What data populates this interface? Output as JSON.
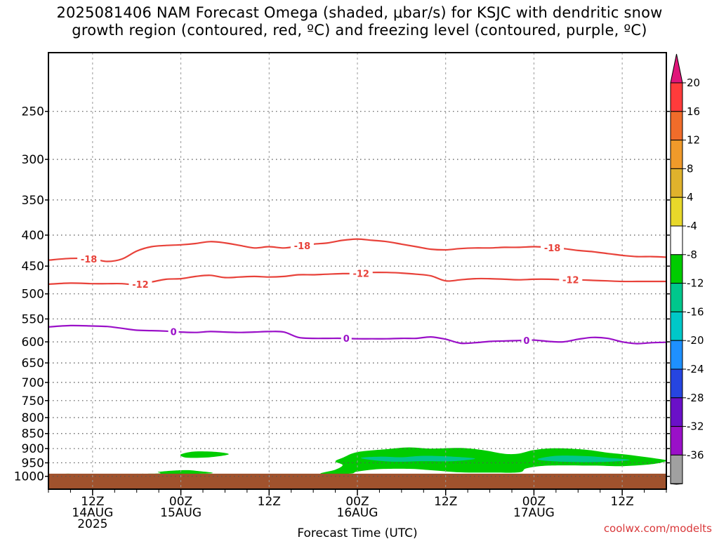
{
  "title_line1": "2025081406 NAM Forecast Omega (shaded, μbar/s) for KSJC with dendritic snow",
  "title_line2": "growth region (contoured, red, ºC) and freezing level (contoured, purple, ºC)",
  "credit": "coolwx.com/modelts",
  "chart_data": {
    "type": "contour",
    "title": "2025081406 NAM Forecast Omega (shaded, μbar/s) for KSJC with dendritic snow growth region (contoured, red, ºC) and freezing level (contoured, purple, ºC)",
    "xlabel": "Forecast Time (UTC)",
    "ylabel": "",
    "x_range_hours": [
      6,
      90
    ],
    "x_ticks": [
      {
        "hour": 12,
        "lines": [
          "12Z",
          "14AUG",
          "2025"
        ]
      },
      {
        "hour": 24,
        "lines": [
          "00Z",
          "15AUG"
        ]
      },
      {
        "hour": 36,
        "lines": [
          "12Z"
        ]
      },
      {
        "hour": 48,
        "lines": [
          "00Z",
          "16AUG"
        ]
      },
      {
        "hour": 60,
        "lines": [
          "12Z"
        ]
      },
      {
        "hour": 72,
        "lines": [
          "00Z",
          "17AUG"
        ]
      },
      {
        "hour": 84,
        "lines": [
          "12Z"
        ]
      }
    ],
    "y_scale": "log pressure (inverted)",
    "y_range_mb": [
      1050,
      200
    ],
    "y_ticks": [
      250,
      300,
      350,
      400,
      450,
      500,
      550,
      600,
      650,
      700,
      750,
      800,
      850,
      900,
      950,
      1000
    ],
    "grid": "dotted",
    "surface_level_mb": 990,
    "contours": [
      {
        "name": "-18",
        "color": "#e8423a",
        "label": "-18",
        "label_hours": [
          11.5,
          40.5,
          74.5
        ],
        "hours": [
          6,
          9,
          12,
          14,
          16,
          18,
          20,
          22,
          24,
          26,
          28,
          30,
          32,
          34,
          36,
          38,
          40,
          42,
          44,
          46,
          48,
          50,
          52,
          54,
          56,
          58,
          60,
          62,
          64,
          66,
          68,
          70,
          72,
          74,
          76,
          78,
          80,
          82,
          84,
          86,
          88,
          90
        ],
        "pressure_mb": [
          440,
          437,
          438,
          442,
          438,
          425,
          418,
          416,
          415,
          413,
          410,
          412,
          416,
          420,
          418,
          420,
          417,
          414,
          412,
          408,
          406,
          408,
          410,
          414,
          418,
          422,
          423,
          421,
          420,
          420,
          419,
          419,
          418,
          419,
          421,
          424,
          426,
          429,
          432,
          434,
          434,
          435
        ]
      },
      {
        "name": "-12",
        "color": "#e8423a",
        "label": "-12",
        "label_hours": [
          18.5,
          48.5,
          77
        ],
        "hours": [
          6,
          9,
          12,
          14,
          16,
          18,
          20,
          22,
          24,
          26,
          28,
          30,
          32,
          34,
          36,
          38,
          40,
          42,
          44,
          46,
          48,
          50,
          52,
          54,
          56,
          58,
          60,
          62,
          64,
          66,
          68,
          70,
          72,
          74,
          76,
          78,
          80,
          82,
          84,
          86,
          88,
          90
        ],
        "pressure_mb": [
          482,
          480,
          481,
          481,
          481,
          483,
          478,
          473,
          472,
          468,
          466,
          470,
          469,
          468,
          469,
          468,
          465,
          465,
          464,
          463,
          463,
          461,
          461,
          462,
          464,
          467,
          476,
          474,
          472,
          472,
          473,
          474,
          473,
          473,
          474,
          474,
          475,
          476,
          477,
          477,
          477,
          477
        ]
      },
      {
        "name": "0",
        "color": "#9a10c8",
        "label": "0",
        "label_hours": [
          23,
          46.5,
          71
        ],
        "hours": [
          6,
          9,
          12,
          14,
          16,
          18,
          20,
          22,
          24,
          26,
          28,
          30,
          32,
          34,
          36,
          38,
          40,
          42,
          44,
          46,
          48,
          50,
          52,
          54,
          56,
          58,
          60,
          62,
          64,
          66,
          68,
          70,
          72,
          74,
          76,
          78,
          80,
          82,
          84,
          86,
          88,
          90
        ],
        "pressure_mb": [
          567,
          564,
          565,
          566,
          570,
          574,
          575,
          576,
          578,
          579,
          577,
          578,
          579,
          578,
          577,
          578,
          590,
          592,
          592,
          592,
          593,
          593,
          593,
          592,
          592,
          589,
          594,
          603,
          602,
          599,
          598,
          597,
          596,
          599,
          600,
          594,
          590,
          592,
          600,
          604,
          602,
          601
        ]
      }
    ],
    "omega_regions": [
      {
        "level": "-4 to -8",
        "color": "#00cc00",
        "polygon_hours_mb": [
          [
            6,
            991
          ],
          [
            6,
            990
          ],
          [
            20,
            990
          ],
          [
            21,
            983
          ],
          [
            24,
            977
          ],
          [
            26,
            979
          ],
          [
            27,
            990
          ],
          [
            6,
            990
          ]
        ]
      },
      {
        "level": "-4 to -8",
        "color": "#00cc00",
        "polygon_hours_mb": [
          [
            24.2,
            918
          ],
          [
            26,
            910
          ],
          [
            29,
            912
          ],
          [
            30.5,
            920
          ],
          [
            28,
            930
          ],
          [
            25,
            932
          ],
          [
            24,
            925
          ]
        ]
      },
      {
        "level": "-4 to -8",
        "color": "#00cc00",
        "polygon_hours_mb": [
          [
            43,
            990
          ],
          [
            45,
            975
          ],
          [
            46,
            958
          ],
          [
            45,
            945
          ],
          [
            46,
            932
          ],
          [
            48,
            912
          ],
          [
            52,
            902
          ],
          [
            55,
            896
          ],
          [
            58,
            900
          ],
          [
            62,
            898
          ],
          [
            65,
            905
          ],
          [
            68,
            918
          ],
          [
            70,
            917
          ],
          [
            72,
            905
          ],
          [
            75,
            899
          ],
          [
            79,
            904
          ],
          [
            82,
            914
          ],
          [
            85,
            922
          ],
          [
            89,
            936
          ],
          [
            90,
            943
          ],
          [
            88,
            955
          ],
          [
            84,
            962
          ],
          [
            80,
            960
          ],
          [
            74,
            960
          ],
          [
            71,
            970
          ],
          [
            70,
            985
          ],
          [
            66,
            986
          ],
          [
            62,
            985
          ],
          [
            58,
            977
          ],
          [
            55,
            972
          ],
          [
            51,
            973
          ],
          [
            48,
            982
          ],
          [
            47,
            990
          ]
        ]
      },
      {
        "level": "-8 to -12",
        "color": "#00c78c",
        "polygon_hours_mb": [
          [
            48.5,
            932
          ],
          [
            51,
            928
          ],
          [
            54,
            930
          ],
          [
            57,
            925
          ],
          [
            61,
            928
          ],
          [
            64,
            935
          ],
          [
            61,
            944
          ],
          [
            57,
            944
          ],
          [
            53,
            946
          ],
          [
            50,
            940
          ]
        ]
      },
      {
        "level": "-8 to -12",
        "color": "#00c78c",
        "polygon_hours_mb": [
          [
            72.5,
            938
          ],
          [
            75,
            925
          ],
          [
            79,
            926
          ],
          [
            82,
            932
          ],
          [
            85,
            940
          ],
          [
            81,
            947
          ],
          [
            76,
            946
          ]
        ]
      }
    ],
    "colorbar": {
      "units": "μbar/s",
      "labels": [
        "20",
        "16",
        "12",
        "8",
        "4",
        "-4",
        "-8",
        "-12",
        "-16",
        "-20",
        "-24",
        "-28",
        "-32",
        "-36"
      ],
      "colors": [
        "#ff3b3b",
        "#f06c2a",
        "#f09a2a",
        "#e0b22c",
        "#e8d82a",
        "#ffffff",
        "#00cc00",
        "#00c78c",
        "#00c8c8",
        "#1e90ff",
        "#2645e0",
        "#6a10c8",
        "#9a10c8",
        "#a0a0a0"
      ],
      "top_arrow_color": "#e0157a",
      "bottom_arrow_color": "#000000"
    }
  }
}
